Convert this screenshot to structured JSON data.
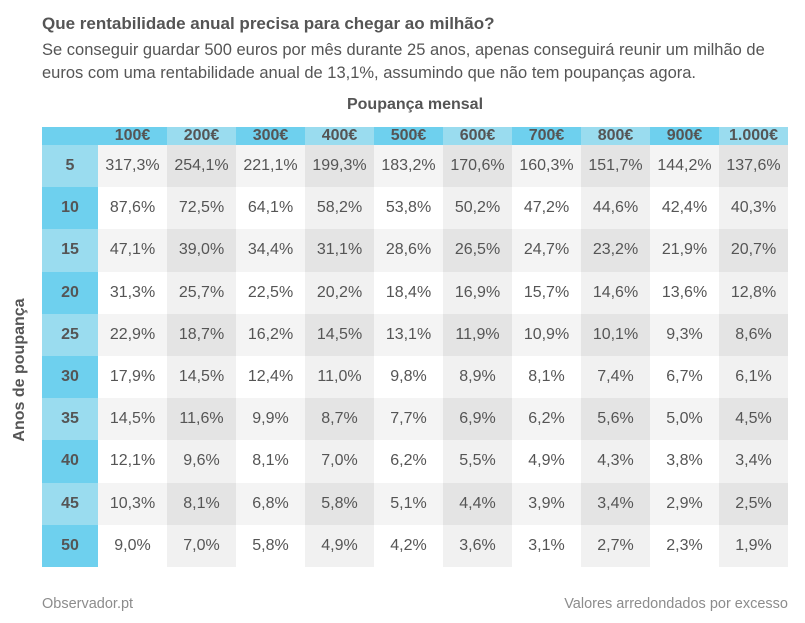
{
  "title": "Que rentabilidade anual precisa para chegar ao milhão?",
  "subtitle": "Se conseguir guardar 500 euros por mês durante 25 anos, apenas conseguirá reunir um milhão de euros com uma rentabilidade anual de 13,1%, assumindo que não tem poupanças agora.",
  "footer": {
    "source": "Observador.pt",
    "note": "Valores arredondados por excesso"
  },
  "colors": {
    "header_cyan": "#6ed0ee",
    "header_cyan_light": "#9adcef",
    "cell_gray": "#f4f4f4",
    "cell_gray_dark": "#e6e6e6",
    "text": "#555555"
  },
  "chart_data": {
    "type": "heatmap",
    "title": "Que rentabilidade anual precisa para chegar ao milhão?",
    "xlabel": "Poupança mensal",
    "ylabel": "Anos de poupança",
    "columns": [
      "100€",
      "200€",
      "300€",
      "400€",
      "500€",
      "600€",
      "700€",
      "800€",
      "900€",
      "1.000€"
    ],
    "rows": [
      "5",
      "10",
      "15",
      "20",
      "25",
      "30",
      "35",
      "40",
      "45",
      "50"
    ],
    "values": [
      [
        "317,3%",
        "254,1%",
        "221,1%",
        "199,3%",
        "183,2%",
        "170,6%",
        "160,3%",
        "151,7%",
        "144,2%",
        "137,6%"
      ],
      [
        "87,6%",
        "72,5%",
        "64,1%",
        "58,2%",
        "53,8%",
        "50,2%",
        "47,2%",
        "44,6%",
        "42,4%",
        "40,3%"
      ],
      [
        "47,1%",
        "39,0%",
        "34,4%",
        "31,1%",
        "28,6%",
        "26,5%",
        "24,7%",
        "23,2%",
        "21,9%",
        "20,7%"
      ],
      [
        "31,3%",
        "25,7%",
        "22,5%",
        "20,2%",
        "18,4%",
        "16,9%",
        "15,7%",
        "14,6%",
        "13,6%",
        "12,8%"
      ],
      [
        "22,9%",
        "18,7%",
        "16,2%",
        "14,5%",
        "13,1%",
        "11,9%",
        "10,9%",
        "10,1%",
        "9,3%",
        "8,6%"
      ],
      [
        "17,9%",
        "14,5%",
        "12,4%",
        "11,0%",
        "9,8%",
        "8,9%",
        "8,1%",
        "7,4%",
        "6,7%",
        "6,1%"
      ],
      [
        "14,5%",
        "11,6%",
        "9,9%",
        "8,7%",
        "7,7%",
        "6,9%",
        "6,2%",
        "5,6%",
        "5,0%",
        "4,5%"
      ],
      [
        "12,1%",
        "9,6%",
        "8,1%",
        "7,0%",
        "6,2%",
        "5,5%",
        "4,9%",
        "4,3%",
        "3,8%",
        "3,4%"
      ],
      [
        "10,3%",
        "8,1%",
        "6,8%",
        "5,8%",
        "5,1%",
        "4,4%",
        "3,9%",
        "3,4%",
        "2,9%",
        "2,5%"
      ],
      [
        "9,0%",
        "7,0%",
        "5,8%",
        "4,9%",
        "4,2%",
        "3,6%",
        "3,1%",
        "2,7%",
        "2,3%",
        "1,9%"
      ]
    ]
  }
}
